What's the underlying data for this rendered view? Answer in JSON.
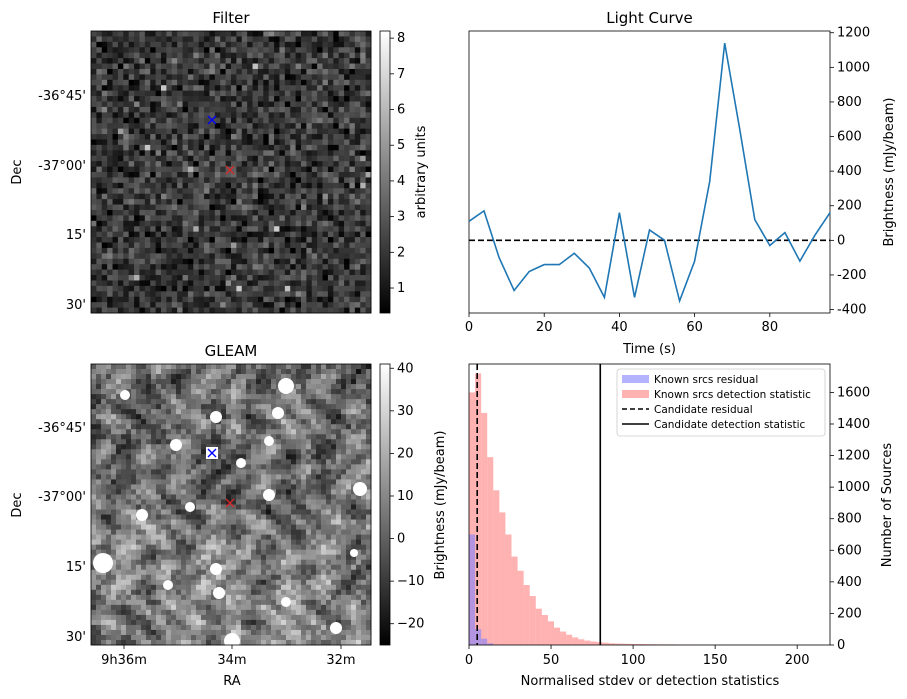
{
  "chart_data": [
    {
      "type": "heatmap",
      "title": "Filter",
      "ylabel": "Dec",
      "y_ticks": [
        "-36°45'",
        "-37°00'",
        "15'",
        "30'"
      ],
      "colorbar": {
        "label": "arbitrary units",
        "range": [
          0.3,
          8.2
        ],
        "ticks": [
          "1",
          "2",
          "3",
          "4",
          "5",
          "6",
          "7",
          "8"
        ],
        "cmap": "gray"
      },
      "markers": [
        {
          "symbol": "x",
          "color": "#0000ff"
        },
        {
          "symbol": "x",
          "color": "#d62728"
        }
      ]
    },
    {
      "type": "line",
      "title": "Light Curve",
      "xlabel": "Time (s)",
      "ylabel": "Brightness (mJy/beam)",
      "xlim": [
        0,
        96
      ],
      "ylim": [
        -420,
        1210
      ],
      "x_ticks": [
        "0",
        "20",
        "40",
        "60",
        "80"
      ],
      "y_ticks": [
        "-400",
        "-200",
        "0",
        "200",
        "400",
        "600",
        "800",
        "1000",
        "1200"
      ],
      "x": [
        0,
        4,
        8,
        12,
        16,
        20,
        24,
        28,
        32,
        36,
        40,
        44,
        48,
        52,
        56,
        60,
        64,
        68,
        72,
        76,
        80,
        84,
        88,
        92,
        96
      ],
      "series": [
        {
          "values": [
            110,
            170,
            -100,
            -290,
            -180,
            -140,
            -140,
            -75,
            -160,
            -330,
            160,
            -330,
            60,
            0,
            -350,
            -120,
            340,
            1140,
            640,
            120,
            -30,
            45,
            -120,
            30,
            160
          ],
          "color": "#1f77b4"
        }
      ],
      "hline": {
        "y": 0,
        "style": "dashed",
        "color": "#000000"
      }
    },
    {
      "type": "heatmap",
      "title": "GLEAM",
      "xlabel": "RA",
      "ylabel": "Dec",
      "x_ticks": [
        "9h36m",
        "34m",
        "32m"
      ],
      "y_ticks": [
        "-36°45'",
        "-37°00'",
        "15'",
        "30'"
      ],
      "colorbar": {
        "label": "Brightness (mJy/beam)",
        "range": [
          -25,
          41
        ],
        "ticks": [
          "−20",
          "−10",
          "0",
          "10",
          "20",
          "30",
          "40"
        ],
        "cmap": "gray"
      },
      "markers": [
        {
          "symbol": "x",
          "color": "#0000ff"
        },
        {
          "symbol": "x",
          "color": "#d62728"
        }
      ]
    },
    {
      "type": "bar",
      "xlabel": "Normalised stdev or detection statistics",
      "ylabel": "Number of Sources",
      "xlim": [
        0,
        220
      ],
      "ylim": [
        0,
        1780
      ],
      "x_ticks": [
        "0",
        "50",
        "100",
        "150",
        "200"
      ],
      "y_ticks": [
        "0",
        "200",
        "400",
        "600",
        "800",
        "1000",
        "1200",
        "1400",
        "1600"
      ],
      "bin_width": 3.7,
      "series": [
        {
          "name": "Known srcs residual",
          "color": "#8080ff",
          "bin_start": 0,
          "values": [
            700,
            100,
            40,
            10,
            3,
            1
          ]
        },
        {
          "name": "Known srcs detection statistic",
          "color": "#ff7f7f",
          "bin_start": 0,
          "values": [
            1600,
            1720,
            1470,
            1190,
            980,
            840,
            700,
            560,
            470,
            380,
            310,
            230,
            190,
            150,
            110,
            85,
            65,
            48,
            36,
            28,
            22,
            18,
            14,
            11,
            9,
            8,
            7,
            6,
            6,
            5,
            5,
            4,
            4,
            4,
            3,
            3,
            3,
            3,
            2,
            2,
            2,
            2,
            2,
            2,
            2,
            2,
            2,
            1,
            1,
            1,
            1,
            1,
            1,
            1,
            1,
            1,
            1,
            1,
            1
          ]
        }
      ],
      "vlines": [
        {
          "name": "Candidate residual",
          "x": 5,
          "style": "dashed"
        },
        {
          "name": "Candidate detection statistic",
          "x": 80,
          "style": "solid"
        }
      ]
    }
  ]
}
